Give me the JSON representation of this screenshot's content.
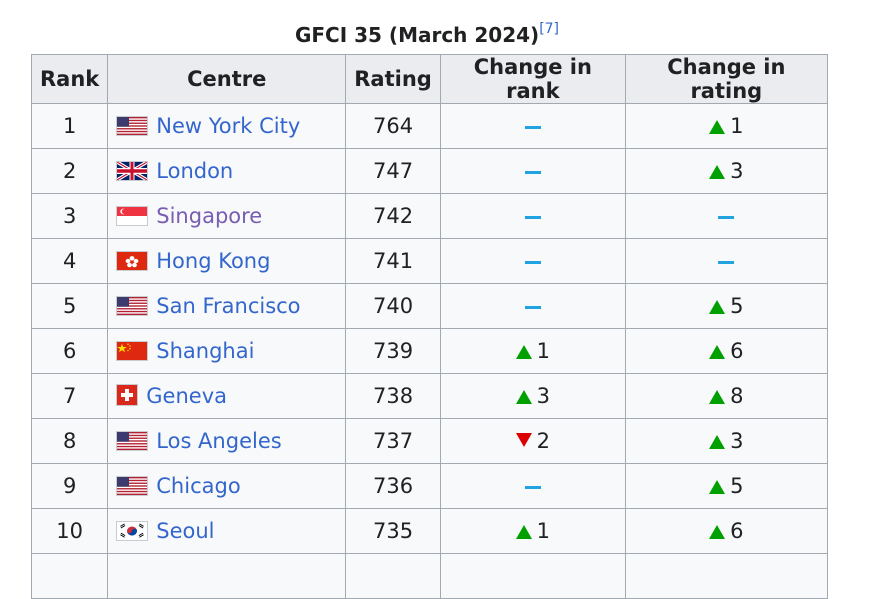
{
  "caption": {
    "title": "GFCI 35 (March 2024)",
    "ref": "[7]"
  },
  "headers": {
    "rank": "Rank",
    "centre": "Centre",
    "rating": "Rating",
    "change_rank": "Change in rank",
    "change_rating": "Change in rating"
  },
  "colors": {
    "link": "#3366cc",
    "visited_link": "#795cb2",
    "up": "#00a000",
    "down": "#dd0000",
    "same": "#20a3e0"
  },
  "rows": [
    {
      "rank": "1",
      "centre": "New York City",
      "flag": "us-flag-icon",
      "rating": "764",
      "change_rank": {
        "dir": "same",
        "value": ""
      },
      "change_rating": {
        "dir": "up",
        "value": "1"
      }
    },
    {
      "rank": "2",
      "centre": "London",
      "flag": "uk-flag-icon",
      "rating": "747",
      "change_rank": {
        "dir": "same",
        "value": ""
      },
      "change_rating": {
        "dir": "up",
        "value": "3"
      }
    },
    {
      "rank": "3",
      "centre": "Singapore",
      "flag": "singapore-flag-icon",
      "rating": "742",
      "change_rank": {
        "dir": "same",
        "value": ""
      },
      "change_rating": {
        "dir": "same",
        "value": ""
      }
    },
    {
      "rank": "4",
      "centre": "Hong Kong",
      "flag": "hong-kong-flag-icon",
      "rating": "741",
      "change_rank": {
        "dir": "same",
        "value": ""
      },
      "change_rating": {
        "dir": "same",
        "value": ""
      }
    },
    {
      "rank": "5",
      "centre": "San Francisco",
      "flag": "us-flag-icon",
      "rating": "740",
      "change_rank": {
        "dir": "same",
        "value": ""
      },
      "change_rating": {
        "dir": "up",
        "value": "5"
      }
    },
    {
      "rank": "6",
      "centre": "Shanghai",
      "flag": "china-flag-icon",
      "rating": "739",
      "change_rank": {
        "dir": "up",
        "value": "1"
      },
      "change_rating": {
        "dir": "up",
        "value": "6"
      }
    },
    {
      "rank": "7",
      "centre": "Geneva",
      "flag": "switzerland-flag-icon",
      "rating": "738",
      "change_rank": {
        "dir": "up",
        "value": "3"
      },
      "change_rating": {
        "dir": "up",
        "value": "8"
      }
    },
    {
      "rank": "8",
      "centre": "Los Angeles",
      "flag": "us-flag-icon",
      "rating": "737",
      "change_rank": {
        "dir": "down",
        "value": "2"
      },
      "change_rating": {
        "dir": "up",
        "value": "3"
      }
    },
    {
      "rank": "9",
      "centre": "Chicago",
      "flag": "us-flag-icon",
      "rating": "736",
      "change_rank": {
        "dir": "same",
        "value": ""
      },
      "change_rating": {
        "dir": "up",
        "value": "5"
      }
    },
    {
      "rank": "10",
      "centre": "Seoul",
      "flag": "south-korea-flag-icon",
      "rating": "735",
      "change_rank": {
        "dir": "up",
        "value": "1"
      },
      "change_rating": {
        "dir": "up",
        "value": "6"
      }
    }
  ]
}
